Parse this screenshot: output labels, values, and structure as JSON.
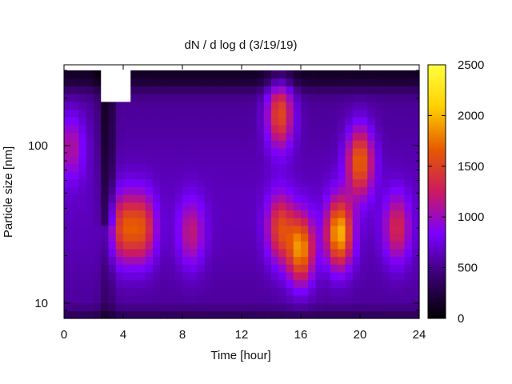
{
  "chart_data": {
    "type": "heatmap",
    "title": "dN / d log d (3/19/19)",
    "xlabel": "Time [hour]",
    "ylabel": "Particle size [nm]",
    "xlim": [
      0,
      24
    ],
    "x_ticks": [
      0,
      4,
      8,
      12,
      16,
      20,
      24
    ],
    "y_scale": "log",
    "ylim_nm": [
      8,
      300
    ],
    "y_ticks": [
      10,
      100
    ],
    "colorbar": {
      "range": [
        0,
        2500
      ],
      "ticks": [
        0,
        500,
        1000,
        1500,
        2000,
        2500
      ],
      "colormap": "black-purple-red-orange-yellow",
      "stops": [
        "#000000",
        "#3a0070",
        "#7a00ff",
        "#cc1a60",
        "#e65a00",
        "#ffd000",
        "#ffff40"
      ]
    },
    "missing_color": "#ffffff",
    "missing_regions": [
      {
        "x_start_hour": 2.6,
        "x_end_hour": 4.5,
        "note": "no data above ~200 nm"
      }
    ],
    "features_dN_dlogd": [
      {
        "time_hour": 0.5,
        "size_nm": 100,
        "value": 1100
      },
      {
        "time_hour": 4.0,
        "size_nm": 30,
        "value": 1500
      },
      {
        "time_hour": 5.3,
        "size_nm": 30,
        "value": 1500
      },
      {
        "time_hour": 8.6,
        "size_nm": 28,
        "value": 1150
      },
      {
        "time_hour": 14.6,
        "size_nm": 160,
        "value": 1650
      },
      {
        "time_hour": 14.6,
        "size_nm": 30,
        "value": 1500
      },
      {
        "time_hour": 16.0,
        "size_nm": 22,
        "value": 1900
      },
      {
        "time_hour": 18.6,
        "size_nm": 28,
        "value": 2050
      },
      {
        "time_hour": 20.0,
        "size_nm": 80,
        "value": 1750
      },
      {
        "time_hour": 22.5,
        "size_nm": 30,
        "value": 1300
      }
    ],
    "grid": false,
    "legend": "colorbar-right"
  }
}
